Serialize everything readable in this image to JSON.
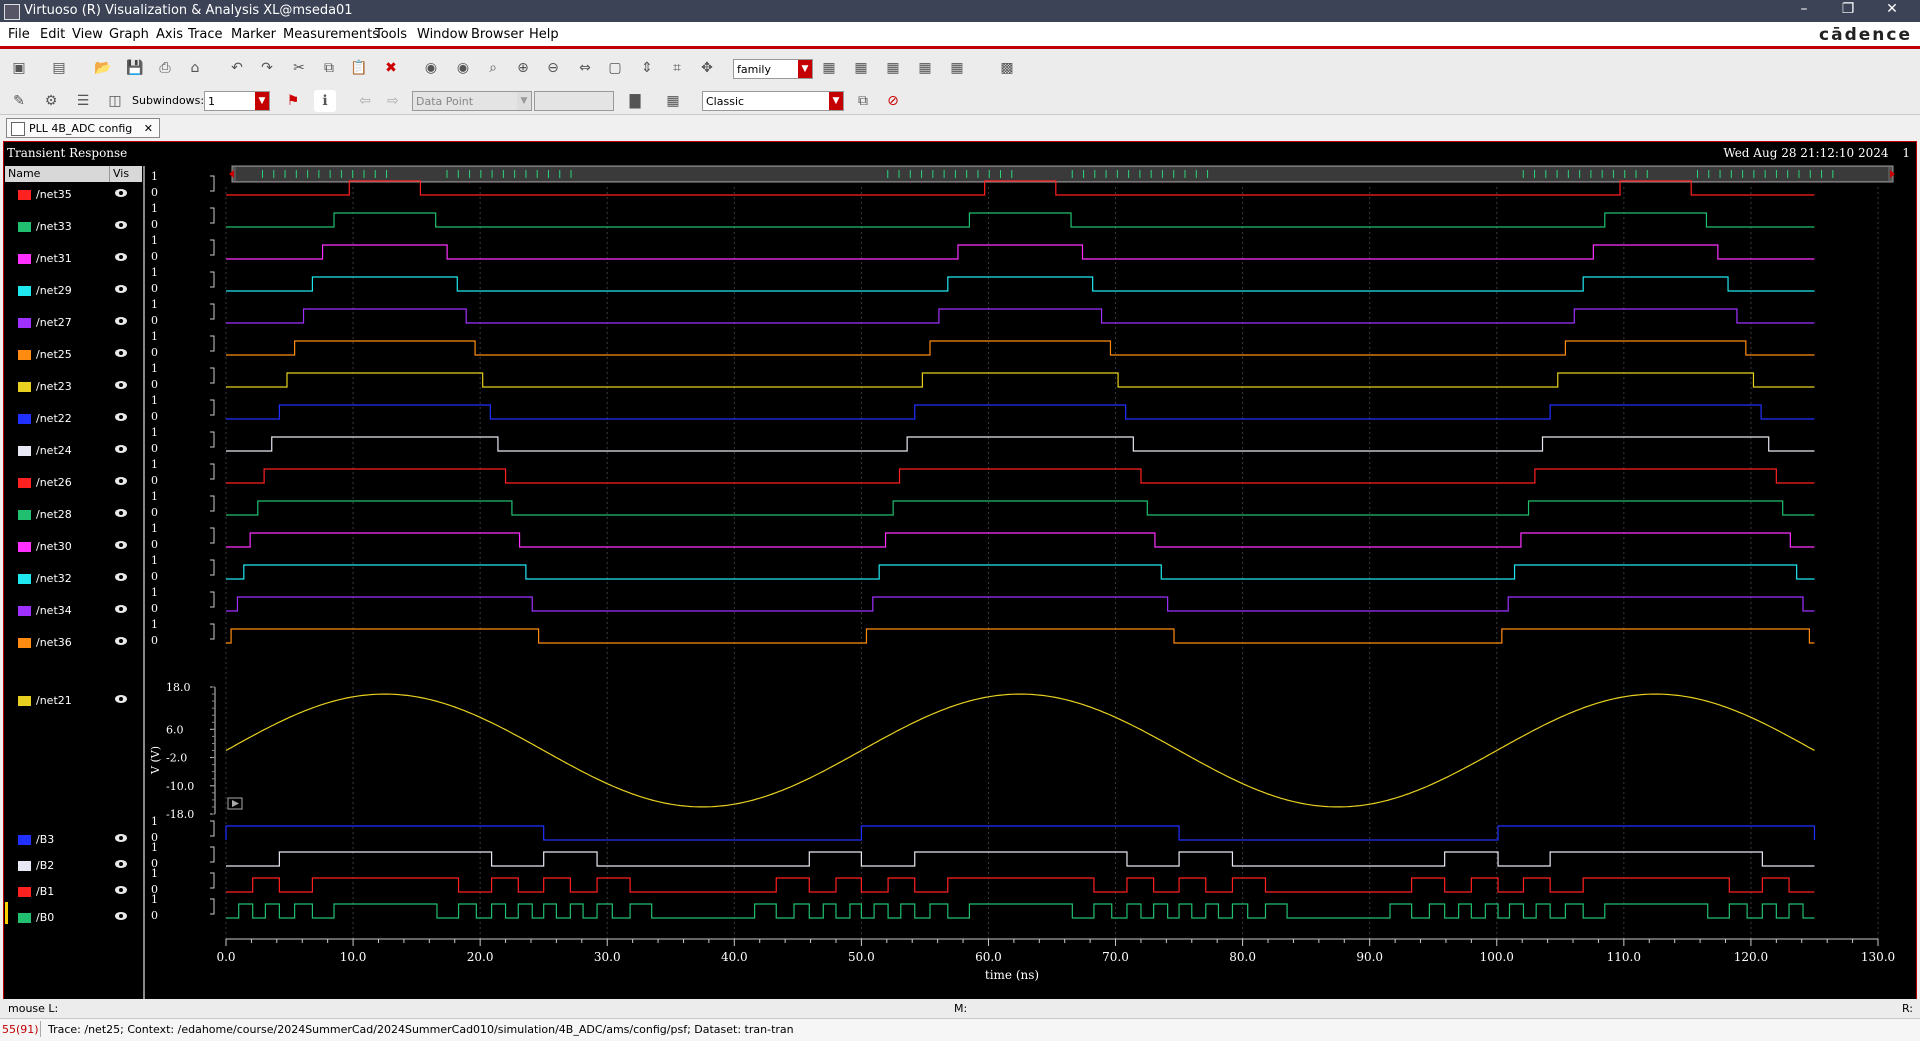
{
  "window": {
    "title": "Virtuoso (R) Visualization & Analysis XL@mseda01",
    "controls": [
      "–",
      "❐",
      "✕"
    ]
  },
  "menu": [
    "File",
    "Edit",
    "View",
    "Graph",
    "Axis",
    "Trace",
    "Marker",
    "Measurements",
    "Tools",
    "Window",
    "Browser",
    "Help"
  ],
  "brand": "cādence",
  "toolbar": {
    "family_combo": "family",
    "subwindows_label": "Subwindows:",
    "subwindows_value": "1",
    "datapoint_combo": "Data Point",
    "style_combo": "Classic"
  },
  "tab": {
    "label": "PLL 4B_ADC config"
  },
  "plot": {
    "title": "Transient Response",
    "date": "Wed Aug 28 21:12:10 2024",
    "subwindow_index": "1",
    "legend_header": {
      "name": "Name",
      "vis": "Vis"
    }
  },
  "colors": {
    "red": "#ff2020",
    "green": "#20c070",
    "magenta": "#ff30ff",
    "cyan": "#20e8f0",
    "purple": "#a030ff",
    "orange": "#ff8c10",
    "yellow": "#e8d020",
    "blue": "#2030ff",
    "white": "#e8e8f4"
  },
  "chart_data": {
    "type": "line",
    "x_axis": {
      "label": "time (ns)",
      "range": [
        0,
        130
      ],
      "ticks": [
        "0.0",
        "10.0",
        "20.0",
        "30.0",
        "40.0",
        "50.0",
        "60.0",
        "70.0",
        "80.0",
        "90.0",
        "100.0",
        "110.0",
        "120.0",
        "130.0"
      ]
    },
    "period_ns": 50,
    "x_end_ns": 125,
    "digital_traces": [
      {
        "name": "/net35",
        "color": "red",
        "ticks": [
          "1",
          "0"
        ],
        "high_start": 9.7,
        "high_end": 15.3
      },
      {
        "name": "/net33",
        "color": "green",
        "ticks": [
          "1",
          "0"
        ],
        "high_start": 8.5,
        "high_end": 16.5
      },
      {
        "name": "/net31",
        "color": "magenta",
        "ticks": [
          "1",
          "0"
        ],
        "high_start": 7.6,
        "high_end": 17.4
      },
      {
        "name": "/net29",
        "color": "cyan",
        "ticks": [
          "1",
          "0"
        ],
        "high_start": 6.8,
        "high_end": 18.2
      },
      {
        "name": "/net27",
        "color": "purple",
        "ticks": [
          "1",
          "0"
        ],
        "high_start": 6.1,
        "high_end": 18.9
      },
      {
        "name": "/net25",
        "color": "orange",
        "ticks": [
          "1",
          "0"
        ],
        "high_start": 5.4,
        "high_end": 19.6
      },
      {
        "name": "/net23",
        "color": "yellow",
        "ticks": [
          "1",
          "0"
        ],
        "high_start": 4.8,
        "high_end": 20.2
      },
      {
        "name": "/net22",
        "color": "blue",
        "ticks": [
          "1",
          "0"
        ],
        "high_start": 4.2,
        "high_end": 20.8
      },
      {
        "name": "/net24",
        "color": "white",
        "ticks": [
          "1",
          "0"
        ],
        "high_start": 3.6,
        "high_end": 21.4
      },
      {
        "name": "/net26",
        "color": "red",
        "ticks": [
          "1",
          "0"
        ],
        "high_start": 3.0,
        "high_end": 22.0
      },
      {
        "name": "/net28",
        "color": "green",
        "ticks": [
          "1",
          "0"
        ],
        "high_start": 2.5,
        "high_end": 22.5
      },
      {
        "name": "/net30",
        "color": "magenta",
        "ticks": [
          "1",
          "0"
        ],
        "high_start": 1.9,
        "high_end": 23.1
      },
      {
        "name": "/net32",
        "color": "cyan",
        "ticks": [
          "1",
          "0"
        ],
        "high_start": 1.4,
        "high_end": 23.6
      },
      {
        "name": "/net34",
        "color": "purple",
        "ticks": [
          "1",
          "0"
        ],
        "high_start": 0.9,
        "high_end": 24.1
      },
      {
        "name": "/net36",
        "color": "orange",
        "ticks": [
          "1",
          "0"
        ],
        "high_start": 0.4,
        "high_end": 24.6
      }
    ],
    "analog_trace": {
      "name": "/net21",
      "color": "yellow",
      "y_label": "V (V)",
      "y_ticks": [
        "18.0",
        "6.0",
        "-2.0",
        "-10.0",
        "-18.0"
      ],
      "y_range": [
        -18,
        18
      ],
      "amplitude": 16,
      "period_ns": 50
    },
    "bus_traces": [
      {
        "name": "/B3",
        "color": "blue",
        "ticks": [
          "1",
          "0"
        ],
        "bit": 3
      },
      {
        "name": "/B2",
        "color": "white",
        "ticks": [
          "1",
          "0"
        ],
        "bit": 2
      },
      {
        "name": "/B1",
        "color": "red",
        "ticks": [
          "1",
          "0"
        ],
        "bit": 1
      },
      {
        "name": "/B0",
        "color": "green",
        "ticks": [
          "1",
          "0"
        ],
        "bit": 0
      }
    ]
  },
  "status": {
    "mouse_l": "mouse L:",
    "m": "M:",
    "r": "R:",
    "code": "55(91)",
    "message": "Trace: /net25; Context: /edahome/course/2024SummerCad/2024SummerCad010/simulation/4B_ADC/ams/config/psf; Dataset: tran-tran"
  }
}
